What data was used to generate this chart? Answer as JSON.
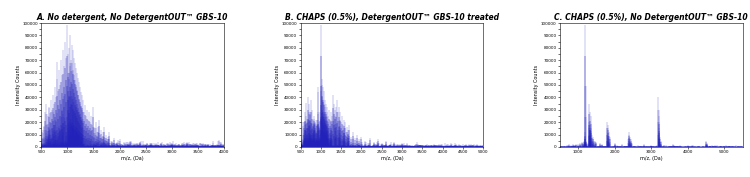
{
  "panels": [
    {
      "title": "A. No detergent, No DetergentOUT™ GBS-10",
      "xlim": [
        500,
        4000
      ],
      "ylim": [
        0,
        100000
      ],
      "ytick_count": 21,
      "xlabel": "m/z, (Da)",
      "ylabel": "Intensity Counts",
      "bar_color": "#2222bb",
      "bar_alpha": 0.75,
      "noise_scale": 800,
      "dense_low_mz": true,
      "peaks": [
        [
          580,
          28000
        ],
        [
          600,
          35000
        ],
        [
          620,
          25000
        ],
        [
          640,
          32000
        ],
        [
          660,
          27000
        ],
        [
          680,
          38000
        ],
        [
          700,
          30000
        ],
        [
          720,
          42000
        ],
        [
          740,
          35000
        ],
        [
          760,
          48000
        ],
        [
          780,
          40000
        ],
        [
          800,
          55000
        ],
        [
          820,
          45000
        ],
        [
          840,
          62000
        ],
        [
          860,
          50000
        ],
        [
          880,
          70000
        ],
        [
          900,
          58000
        ],
        [
          920,
          78000
        ],
        [
          940,
          65000
        ],
        [
          960,
          85000
        ],
        [
          980,
          72000
        ],
        [
          1000,
          98000
        ],
        [
          1010,
          60000
        ],
        [
          1020,
          75000
        ],
        [
          1030,
          55000
        ],
        [
          1040,
          80000
        ],
        [
          1050,
          65000
        ],
        [
          1060,
          90000
        ],
        [
          1070,
          70000
        ],
        [
          1080,
          82000
        ],
        [
          1090,
          68000
        ],
        [
          1100,
          78000
        ],
        [
          1110,
          62000
        ],
        [
          1120,
          72000
        ],
        [
          1130,
          58000
        ],
        [
          1140,
          68000
        ],
        [
          1150,
          54000
        ],
        [
          1160,
          64000
        ],
        [
          1170,
          50000
        ],
        [
          1180,
          60000
        ],
        [
          1190,
          46000
        ],
        [
          1200,
          56000
        ],
        [
          1210,
          42000
        ],
        [
          1220,
          52000
        ],
        [
          1230,
          38000
        ],
        [
          1240,
          48000
        ],
        [
          1250,
          35000
        ],
        [
          1260,
          44000
        ],
        [
          1270,
          32000
        ],
        [
          1280,
          42000
        ],
        [
          1290,
          30000
        ],
        [
          1300,
          38000
        ],
        [
          1320,
          28000
        ],
        [
          1340,
          34000
        ],
        [
          1360,
          25000
        ],
        [
          1380,
          30000
        ],
        [
          1400,
          22000
        ],
        [
          1420,
          28000
        ],
        [
          1440,
          20000
        ],
        [
          1460,
          25000
        ],
        [
          1480,
          18000
        ],
        [
          1500,
          32000
        ],
        [
          1520,
          15000
        ],
        [
          1540,
          20000
        ],
        [
          1560,
          12000
        ],
        [
          1580,
          16000
        ],
        [
          1600,
          22000
        ],
        [
          1620,
          10000
        ],
        [
          1640,
          14000
        ],
        [
          1660,
          8000
        ],
        [
          1680,
          12000
        ],
        [
          1700,
          16000
        ],
        [
          1720,
          7000
        ],
        [
          1740,
          10000
        ],
        [
          1760,
          6000
        ],
        [
          1780,
          8000
        ],
        [
          1800,
          12000
        ],
        [
          1850,
          5000
        ],
        [
          1900,
          7000
        ],
        [
          1950,
          4000
        ],
        [
          2000,
          6000
        ],
        [
          2100,
          3500
        ],
        [
          2200,
          5000
        ],
        [
          2300,
          3000
        ],
        [
          2400,
          4000
        ],
        [
          2500,
          2500
        ],
        [
          2600,
          3500
        ],
        [
          2700,
          2000
        ],
        [
          2800,
          3000
        ],
        [
          2900,
          1500
        ],
        [
          3000,
          2500
        ],
        [
          3100,
          1200
        ],
        [
          3200,
          2000
        ],
        [
          3300,
          900
        ],
        [
          3400,
          1500
        ],
        [
          3500,
          700
        ],
        [
          3600,
          1200
        ],
        [
          3700,
          600
        ],
        [
          3800,
          1000
        ],
        [
          3900,
          500
        ]
      ]
    },
    {
      "title": "B. CHAPS (0.5%), DetergentOUT™ GBS-10 treated",
      "xlim": [
        500,
        5000
      ],
      "ylim": [
        0,
        100000
      ],
      "ytick_count": 21,
      "xlabel": "m/z, (Da)",
      "ylabel": "Intensity Counts",
      "bar_color": "#2222bb",
      "bar_alpha": 0.75,
      "noise_scale": 500,
      "dense_low_mz": true,
      "peaks": [
        [
          580,
          20000
        ],
        [
          600,
          28000
        ],
        [
          620,
          18000
        ],
        [
          640,
          25000
        ],
        [
          660,
          20000
        ],
        [
          680,
          30000
        ],
        [
          700,
          22000
        ],
        [
          720,
          35000
        ],
        [
          740,
          28000
        ],
        [
          760,
          38000
        ],
        [
          780,
          30000
        ],
        [
          800,
          22000
        ],
        [
          820,
          18000
        ],
        [
          840,
          25000
        ],
        [
          860,
          20000
        ],
        [
          880,
          15000
        ],
        [
          900,
          22000
        ],
        [
          920,
          18000
        ],
        [
          940,
          25000
        ],
        [
          960,
          20000
        ],
        [
          980,
          28000
        ],
        [
          1000,
          98000
        ],
        [
          1010,
          45000
        ],
        [
          1020,
          55000
        ],
        [
          1030,
          40000
        ],
        [
          1040,
          50000
        ],
        [
          1050,
          38000
        ],
        [
          1060,
          48000
        ],
        [
          1070,
          35000
        ],
        [
          1080,
          45000
        ],
        [
          1090,
          32000
        ],
        [
          1100,
          38000
        ],
        [
          1110,
          28000
        ],
        [
          1120,
          35000
        ],
        [
          1130,
          25000
        ],
        [
          1140,
          32000
        ],
        [
          1150,
          22000
        ],
        [
          1160,
          28000
        ],
        [
          1170,
          20000
        ],
        [
          1180,
          25000
        ],
        [
          1200,
          30000
        ],
        [
          1220,
          22000
        ],
        [
          1240,
          28000
        ],
        [
          1260,
          20000
        ],
        [
          1280,
          25000
        ],
        [
          1300,
          42000
        ],
        [
          1320,
          35000
        ],
        [
          1340,
          30000
        ],
        [
          1360,
          25000
        ],
        [
          1380,
          32000
        ],
        [
          1400,
          38000
        ],
        [
          1420,
          28000
        ],
        [
          1440,
          32000
        ],
        [
          1460,
          22000
        ],
        [
          1480,
          28000
        ],
        [
          1500,
          20000
        ],
        [
          1520,
          25000
        ],
        [
          1540,
          18000
        ],
        [
          1560,
          22000
        ],
        [
          1580,
          15000
        ],
        [
          1600,
          20000
        ],
        [
          1620,
          12000
        ],
        [
          1640,
          16000
        ],
        [
          1660,
          10000
        ],
        [
          1680,
          14000
        ],
        [
          1700,
          18000
        ],
        [
          1750,
          8000
        ],
        [
          1800,
          12000
        ],
        [
          1850,
          7000
        ],
        [
          1900,
          10000
        ],
        [
          1950,
          6000
        ],
        [
          2000,
          8000
        ],
        [
          2100,
          5000
        ],
        [
          2200,
          7000
        ],
        [
          2300,
          4000
        ],
        [
          2400,
          6000
        ],
        [
          2500,
          3000
        ],
        [
          2600,
          5000
        ],
        [
          2700,
          2500
        ],
        [
          2800,
          4000
        ],
        [
          2900,
          2000
        ],
        [
          3000,
          3000
        ],
        [
          3200,
          1500
        ],
        [
          3400,
          2000
        ],
        [
          3600,
          1000
        ],
        [
          3800,
          1500
        ],
        [
          4000,
          800
        ],
        [
          4200,
          600
        ],
        [
          4400,
          400
        ],
        [
          4600,
          300
        ],
        [
          4800,
          200
        ]
      ]
    },
    {
      "title": "C. CHAPS (0.5%), No DetergentOUT™ GBS-10",
      "xlim": [
        500,
        5500
      ],
      "ylim": [
        0,
        100000
      ],
      "ytick_count": 21,
      "xlabel": "m/z, (Da)",
      "ylabel": "Intensity Counts",
      "bar_color": "#2222bb",
      "bar_alpha": 0.75,
      "noise_scale": 200,
      "dense_low_mz": false,
      "peaks": [
        [
          700,
          1500
        ],
        [
          750,
          2000
        ],
        [
          800,
          1500
        ],
        [
          850,
          2000
        ],
        [
          900,
          1800
        ],
        [
          950,
          2500
        ],
        [
          1000,
          2000
        ],
        [
          1050,
          3000
        ],
        [
          1100,
          4000
        ],
        [
          1130,
          3500
        ],
        [
          1150,
          5000
        ],
        [
          1180,
          12000
        ],
        [
          1190,
          8000
        ],
        [
          1200,
          98000
        ],
        [
          1210,
          5000
        ],
        [
          1220,
          4000
        ],
        [
          1280,
          3000
        ],
        [
          1300,
          35000
        ],
        [
          1310,
          20000
        ],
        [
          1320,
          28000
        ],
        [
          1330,
          18000
        ],
        [
          1340,
          25000
        ],
        [
          1360,
          15000
        ],
        [
          1380,
          10000
        ],
        [
          1400,
          8000
        ],
        [
          1420,
          6000
        ],
        [
          1450,
          5000
        ],
        [
          1480,
          4000
        ],
        [
          1600,
          3000
        ],
        [
          1650,
          2500
        ],
        [
          1800,
          20000
        ],
        [
          1810,
          15000
        ],
        [
          1820,
          18000
        ],
        [
          1840,
          12000
        ],
        [
          1860,
          8000
        ],
        [
          2000,
          3000
        ],
        [
          2200,
          2000
        ],
        [
          2380,
          12000
        ],
        [
          2400,
          10000
        ],
        [
          2420,
          8000
        ],
        [
          2440,
          6000
        ],
        [
          2460,
          4000
        ],
        [
          2800,
          2000
        ],
        [
          3000,
          1500
        ],
        [
          3200,
          40000
        ],
        [
          3210,
          25000
        ],
        [
          3220,
          15000
        ],
        [
          3240,
          8000
        ],
        [
          3260,
          5000
        ],
        [
          3600,
          2000
        ],
        [
          3800,
          1500
        ],
        [
          4000,
          1200
        ],
        [
          4500,
          5000
        ],
        [
          4520,
          3000
        ],
        [
          4540,
          2000
        ],
        [
          5000,
          600
        ],
        [
          5200,
          400
        ]
      ]
    }
  ],
  "fig_bg": "#ffffff",
  "axes_bg": "#ffffff",
  "spine_color": "#000000",
  "tick_color": "#000000",
  "label_color": "#000000",
  "title_fontsize": 5.5,
  "axis_label_fontsize": 3.5,
  "tick_fontsize": 3.0
}
